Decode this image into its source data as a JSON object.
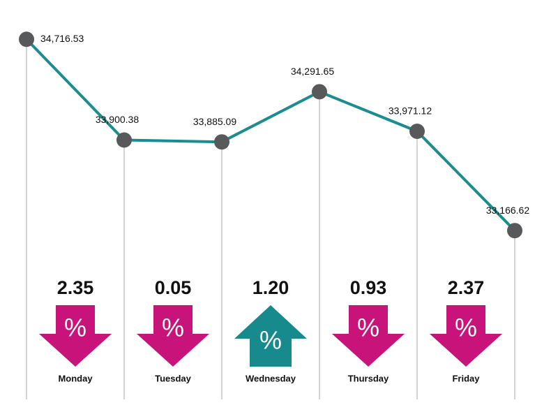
{
  "chart_data": {
    "type": "line",
    "categories": [
      null,
      null,
      null,
      null,
      null,
      null
    ],
    "series": [
      {
        "color": "#1b8d8f",
        "marker_color": "#58595b",
        "values": [
          34716.53,
          33900.38,
          33885.09,
          34291.65,
          33971.12,
          33166.62
        ],
        "value_labels": [
          "34,716.53",
          "33,900.38",
          "33,885.09",
          "34,291.65",
          "33,971.12",
          "33,166.62"
        ]
      }
    ],
    "ylim": [
      31810,
      34865
    ],
    "grid_color": "#aaaaaa",
    "percent_symbol": "%",
    "changes": {
      "days": [
        "Monday",
        "Tuesday",
        "Wednesday",
        "Thursday",
        "Friday"
      ],
      "values": [
        2.35,
        0.05,
        1.2,
        0.93,
        2.37
      ],
      "value_labels": [
        "2.35",
        "0.05",
        "1.20",
        "0.93",
        "2.37"
      ],
      "directions": [
        "down",
        "down",
        "up",
        "down",
        "down"
      ],
      "down_color": "#c8137b",
      "up_color": "#178a8d"
    }
  }
}
